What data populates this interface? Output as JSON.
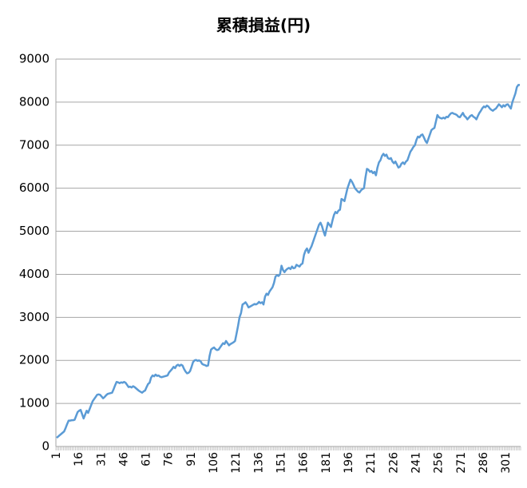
{
  "chart_data": {
    "type": "line",
    "title": "累積損益(円)",
    "categories": [
      1,
      null,
      null,
      null,
      null,
      null,
      null,
      null,
      null,
      null,
      null,
      null,
      null,
      null,
      null,
      16,
      null,
      null,
      null,
      null,
      null,
      null,
      null,
      null,
      null,
      null,
      null,
      null,
      null,
      null,
      31,
      null,
      null,
      null,
      null,
      null,
      null,
      null,
      null,
      null,
      null,
      null,
      null,
      null,
      null,
      46,
      null,
      null,
      null,
      null,
      null,
      null,
      null,
      null,
      null,
      null,
      null,
      null,
      null,
      null,
      61,
      null,
      null,
      null,
      null,
      null,
      null,
      null,
      null,
      null,
      null,
      null,
      null,
      null,
      null,
      76,
      null,
      null,
      null,
      null,
      null,
      null,
      null,
      null,
      null,
      null,
      null,
      null,
      null,
      null,
      91,
      null,
      null,
      null,
      null,
      null,
      null,
      null,
      null,
      null,
      null,
      null,
      null,
      null,
      null,
      106,
      null,
      null,
      null,
      null,
      null,
      null,
      null,
      null,
      null,
      null,
      null,
      null,
      null,
      null,
      121,
      null,
      null,
      null,
      null,
      null,
      null,
      null,
      null,
      null,
      null,
      null,
      null,
      null,
      null,
      136,
      null,
      null,
      null,
      null,
      null,
      null,
      null,
      null,
      null,
      null,
      null,
      null,
      null,
      null,
      151,
      null,
      null,
      null,
      null,
      null,
      null,
      null,
      null,
      null,
      null,
      null,
      null,
      null,
      null,
      166,
      null,
      null,
      null,
      null,
      null,
      null,
      null,
      null,
      null,
      null,
      null,
      null,
      null,
      null,
      181,
      null,
      null,
      null,
      null,
      null,
      null,
      null,
      null,
      null,
      null,
      null,
      null,
      null,
      null,
      196,
      null,
      null,
      null,
      null,
      null,
      null,
      null,
      null,
      null,
      null,
      null,
      null,
      null,
      null,
      211,
      null,
      null,
      null,
      null,
      null,
      null,
      null,
      null,
      null,
      null,
      null,
      null,
      null,
      null,
      226,
      null,
      null,
      null,
      null,
      null,
      null,
      null,
      null,
      null,
      null,
      null,
      null,
      null,
      null,
      241,
      null,
      null,
      null,
      null,
      null,
      null,
      null,
      null,
      null,
      null,
      null,
      null,
      null,
      null,
      256,
      null,
      null,
      null,
      null,
      null,
      null,
      null,
      null,
      null,
      null,
      null,
      null,
      null,
      null,
      271,
      null,
      null,
      null,
      null,
      null,
      null,
      null,
      null,
      null,
      null,
      null,
      null,
      null,
      null,
      286,
      null,
      null,
      null,
      null,
      null,
      null,
      null,
      null,
      null,
      null,
      null,
      null,
      null,
      null,
      301,
      null,
      null,
      null,
      null,
      null,
      null,
      null,
      null,
      null
    ],
    "values": [
      200,
      230,
      260,
      290,
      320,
      350,
      430,
      520,
      600,
      600,
      610,
      610,
      620,
      710,
      800,
      830,
      850,
      750,
      650,
      740,
      830,
      780,
      870,
      960,
      1050,
      1100,
      1150,
      1200,
      1210,
      1200,
      1160,
      1120,
      1150,
      1190,
      1220,
      1230,
      1240,
      1250,
      1330,
      1420,
      1500,
      1490,
      1470,
      1490,
      1480,
      1500,
      1480,
      1430,
      1380,
      1390,
      1370,
      1400,
      1380,
      1350,
      1320,
      1290,
      1270,
      1250,
      1280,
      1300,
      1380,
      1450,
      1480,
      1600,
      1650,
      1630,
      1670,
      1640,
      1650,
      1620,
      1610,
      1620,
      1630,
      1640,
      1650,
      1720,
      1760,
      1800,
      1850,
      1820,
      1880,
      1900,
      1870,
      1900,
      1880,
      1800,
      1740,
      1700,
      1710,
      1750,
      1850,
      1960,
      2000,
      2010,
      1990,
      2000,
      1980,
      1920,
      1900,
      1890,
      1870,
      1880,
      2100,
      2250,
      2280,
      2300,
      2260,
      2240,
      2250,
      2300,
      2350,
      2400,
      2380,
      2450,
      2400,
      2350,
      2380,
      2400,
      2420,
      2450,
      2620,
      2800,
      3000,
      3100,
      3300,
      3320,
      3350,
      3300,
      3230,
      3250,
      3270,
      3290,
      3310,
      3300,
      3320,
      3360,
      3330,
      3350,
      3300,
      3480,
      3550,
      3520,
      3600,
      3650,
      3700,
      3800,
      3950,
      3980,
      3960,
      4000,
      4200,
      4100,
      4050,
      4100,
      4130,
      4150,
      4120,
      4180,
      4140,
      4150,
      4220,
      4200,
      4180,
      4230,
      4250,
      4450,
      4550,
      4600,
      4500,
      4580,
      4650,
      4750,
      4850,
      4950,
      5050,
      5150,
      5200,
      5120,
      5000,
      4900,
      5050,
      5200,
      5150,
      5100,
      5250,
      5380,
      5450,
      5420,
      5480,
      5500,
      5750,
      5730,
      5700,
      5850,
      6000,
      6100,
      6200,
      6150,
      6080,
      6000,
      5960,
      5920,
      5900,
      5950,
      5980,
      6000,
      6250,
      6450,
      6430,
      6380,
      6400,
      6350,
      6380,
      6300,
      6480,
      6600,
      6650,
      6750,
      6800,
      6750,
      6780,
      6700,
      6680,
      6700,
      6620,
      6580,
      6620,
      6550,
      6480,
      6500,
      6570,
      6600,
      6560,
      6620,
      6650,
      6750,
      6850,
      6900,
      6960,
      7000,
      7120,
      7200,
      7180,
      7230,
      7250,
      7180,
      7100,
      7050,
      7150,
      7250,
      7350,
      7380,
      7400,
      7550,
      7700,
      7650,
      7630,
      7620,
      7640,
      7620,
      7660,
      7650,
      7700,
      7740,
      7750,
      7730,
      7720,
      7700,
      7660,
      7650,
      7700,
      7750,
      7680,
      7650,
      7600,
      7640,
      7680,
      7700,
      7660,
      7640,
      7600,
      7680,
      7750,
      7800,
      7860,
      7900,
      7880,
      7920,
      7900,
      7850,
      7820,
      7800,
      7830,
      7850,
      7900,
      7950,
      7920,
      7880,
      7930,
      7900,
      7940,
      7950,
      7900,
      7850,
      8000,
      8100,
      8200,
      8350,
      8400,
      8400
    ],
    "color": "#5b9bd5",
    "ylim": [
      0,
      9000
    ],
    "yticks": [
      0,
      1000,
      2000,
      3000,
      4000,
      5000,
      6000,
      7000,
      8000,
      9000
    ],
    "grid": true
  }
}
